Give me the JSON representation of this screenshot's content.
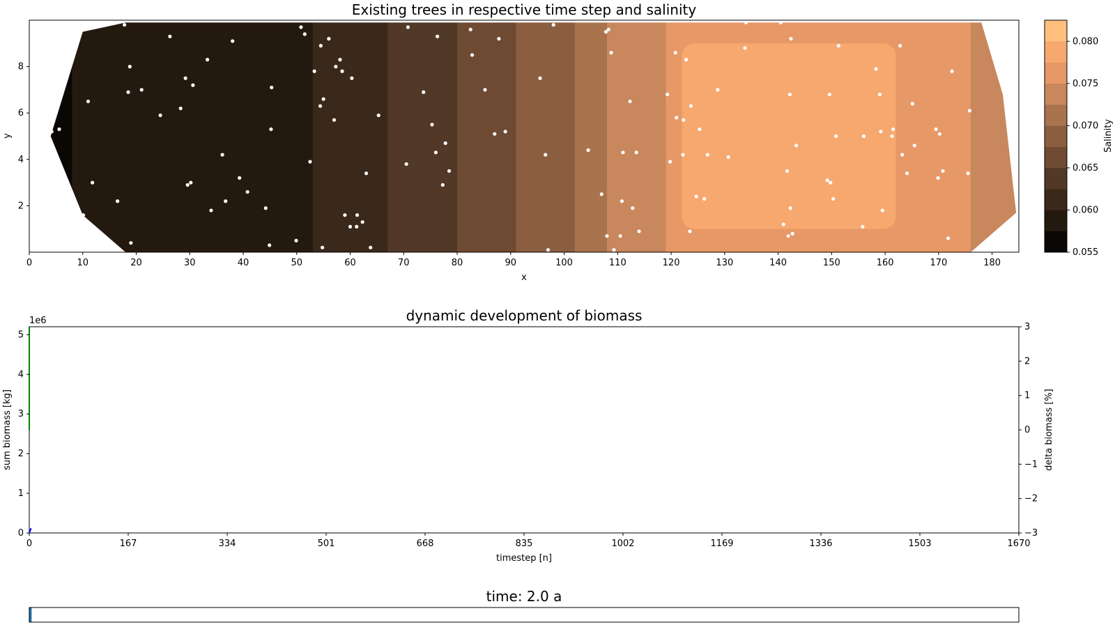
{
  "chart_data": [
    {
      "type": "heatmap",
      "title": "Existing trees in respective time step and salinity",
      "xlabel": "x",
      "ylabel": "y",
      "xlim": [
        0,
        185
      ],
      "ylim": [
        0,
        10
      ],
      "xticks": [
        0,
        10,
        20,
        30,
        40,
        50,
        60,
        70,
        80,
        90,
        100,
        110,
        120,
        130,
        140,
        150,
        160,
        170,
        180
      ],
      "yticks": [
        2,
        4,
        6,
        8
      ],
      "colorbar": {
        "label": "Salinity",
        "range": [
          0.055,
          0.0825
        ],
        "ticks": [
          0.055,
          0.06,
          0.065,
          0.07,
          0.075,
          0.08
        ],
        "tick_labels": [
          "0.055",
          "0.060",
          "0.065",
          "0.070",
          "0.075",
          "0.080"
        ],
        "levels": [
          0.055,
          0.0575,
          0.06,
          0.0625,
          0.065,
          0.0675,
          0.07,
          0.0725,
          0.075,
          0.0775,
          0.08,
          0.0825
        ],
        "colors": [
          "#0a0705",
          "#24190f",
          "#3a281a",
          "#523826",
          "#6e4a32",
          "#8b5e3f",
          "#a9734e",
          "#c8875d",
          "#e69866",
          "#f6a86f",
          "#ffc07d"
        ]
      },
      "salinity_bands": [
        {
          "x": [
            4,
            8
          ],
          "level": 0
        },
        {
          "x": [
            8,
            53
          ],
          "level": 1
        },
        {
          "x": [
            53,
            67
          ],
          "level": 2
        },
        {
          "x": [
            67,
            80
          ],
          "level": 3
        },
        {
          "x": [
            80,
            91
          ],
          "level": 4
        },
        {
          "x": [
            91,
            102
          ],
          "level": 5
        },
        {
          "x": [
            102,
            108
          ],
          "level": 6
        },
        {
          "x": [
            108,
            119
          ],
          "level": 7
        },
        {
          "x": [
            119,
            176
          ],
          "level": 8
        },
        {
          "x": [
            176,
            185
          ],
          "level": 7
        }
      ],
      "salinity_core": {
        "x": [
          122,
          162
        ],
        "y": [
          1,
          9
        ],
        "level": 9
      },
      "trees": [
        [
          4.2,
          5.2
        ],
        [
          5.6,
          5.3
        ],
        [
          10.1,
          1.6
        ],
        [
          11,
          6.5
        ],
        [
          11.8,
          3
        ],
        [
          16.5,
          2.2
        ],
        [
          17.8,
          9.8
        ],
        [
          18.5,
          6.9
        ],
        [
          18.8,
          8
        ],
        [
          19,
          0.4
        ],
        [
          21,
          7
        ],
        [
          24.5,
          5.9
        ],
        [
          26.3,
          9.3
        ],
        [
          28.3,
          6.2
        ],
        [
          29.2,
          7.5
        ],
        [
          29.6,
          2.9
        ],
        [
          30.2,
          3
        ],
        [
          30.6,
          7.2
        ],
        [
          33.3,
          8.3
        ],
        [
          34,
          1.8
        ],
        [
          36.1,
          4.2
        ],
        [
          36.7,
          2.2
        ],
        [
          38,
          9.1
        ],
        [
          39.3,
          3.2
        ],
        [
          40.8,
          2.6
        ],
        [
          44.2,
          1.9
        ],
        [
          44.9,
          0.3
        ],
        [
          45.2,
          5.3
        ],
        [
          45.3,
          7.1
        ],
        [
          49.9,
          0.5
        ],
        [
          50.8,
          9.7
        ],
        [
          51.5,
          9.4
        ],
        [
          52.5,
          3.9
        ],
        [
          53.3,
          7.8
        ],
        [
          54.4,
          6.3
        ],
        [
          54.5,
          8.9
        ],
        [
          54.8,
          0.2
        ],
        [
          55,
          6.6
        ],
        [
          56,
          9.2
        ],
        [
          57,
          5.7
        ],
        [
          57.3,
          8
        ],
        [
          58.1,
          8.3
        ],
        [
          58.5,
          7.8
        ],
        [
          59,
          1.6
        ],
        [
          60,
          1.1
        ],
        [
          60.3,
          7.5
        ],
        [
          61.2,
          1.1
        ],
        [
          61.3,
          1.6
        ],
        [
          62.3,
          1.3
        ],
        [
          63,
          3.4
        ],
        [
          63.8,
          0.2
        ],
        [
          65.3,
          5.9
        ],
        [
          70.5,
          3.8
        ],
        [
          70.8,
          9.7
        ],
        [
          73.7,
          6.9
        ],
        [
          75.3,
          5.5
        ],
        [
          76,
          4.3
        ],
        [
          76.3,
          9.3
        ],
        [
          77.3,
          2.9
        ],
        [
          77.8,
          4.7
        ],
        [
          78.5,
          3.5
        ],
        [
          82.5,
          9.6
        ],
        [
          82.8,
          8.5
        ],
        [
          85.2,
          7
        ],
        [
          87,
          5.1
        ],
        [
          87.8,
          9.2
        ],
        [
          89,
          5.2
        ],
        [
          95.5,
          7.5
        ],
        [
          96.5,
          4.2
        ],
        [
          97,
          0.1
        ],
        [
          98,
          9.8
        ],
        [
          104.5,
          4.4
        ],
        [
          107,
          2.5
        ],
        [
          107.8,
          9.5
        ],
        [
          108,
          0.7
        ],
        [
          108.3,
          9.6
        ],
        [
          108.8,
          8.6
        ],
        [
          109.3,
          0.1
        ],
        [
          110.5,
          0.7
        ],
        [
          110.8,
          2.2
        ],
        [
          111,
          4.3
        ],
        [
          112.3,
          6.5
        ],
        [
          112.8,
          1.9
        ],
        [
          113.5,
          4.3
        ],
        [
          114,
          0.9
        ],
        [
          119.3,
          6.8
        ],
        [
          119.8,
          3.9
        ],
        [
          120.8,
          8.6
        ],
        [
          121,
          5.8
        ],
        [
          122.2,
          4.2
        ],
        [
          122.3,
          5.7
        ],
        [
          122.8,
          8.3
        ],
        [
          123.5,
          0.9
        ],
        [
          123.7,
          6.3
        ],
        [
          124.7,
          2.4
        ],
        [
          125.3,
          5.3
        ],
        [
          126.2,
          2.3
        ],
        [
          126.8,
          4.2
        ],
        [
          128.7,
          7
        ],
        [
          130.7,
          4.1
        ],
        [
          133.8,
          8.8
        ],
        [
          134,
          9.9
        ],
        [
          140.5,
          9.9
        ],
        [
          141,
          1.2
        ],
        [
          141.7,
          3.5
        ],
        [
          141.9,
          0.7
        ],
        [
          142.2,
          6.8
        ],
        [
          142.3,
          1.9
        ],
        [
          142.4,
          9.2
        ],
        [
          142.7,
          0.8
        ],
        [
          143.4,
          4.6
        ],
        [
          149.2,
          3.1
        ],
        [
          149.6,
          6.8
        ],
        [
          149.8,
          3
        ],
        [
          150.3,
          2.3
        ],
        [
          150.8,
          5
        ],
        [
          151.3,
          8.9
        ],
        [
          155.8,
          1.1
        ],
        [
          156,
          5
        ],
        [
          158.3,
          7.9
        ],
        [
          159,
          6.8
        ],
        [
          159.2,
          5.2
        ],
        [
          159.5,
          1.8
        ],
        [
          161.3,
          5
        ],
        [
          161.5,
          5.3
        ],
        [
          162.8,
          8.9
        ],
        [
          163.2,
          4.2
        ],
        [
          164.1,
          3.4
        ],
        [
          165.1,
          6.4
        ],
        [
          165.5,
          4.6
        ],
        [
          169.5,
          5.3
        ],
        [
          169.9,
          3.2
        ],
        [
          170.2,
          5.1
        ],
        [
          170.8,
          3.5
        ],
        [
          171.8,
          0.6
        ],
        [
          172.5,
          7.8
        ],
        [
          175.5,
          3.4
        ],
        [
          175.8,
          6.1
        ]
      ]
    },
    {
      "type": "line",
      "title": "dynamic development of biomass",
      "xlabel": "timestep [n]",
      "ylabel": "sum biomass [kg]",
      "ylabel_right": "delta biomass [%]",
      "xlim": [
        0,
        1670
      ],
      "ylim": [
        0,
        5.2
      ],
      "ylim_right": [
        -3,
        3
      ],
      "xticks": [
        0,
        167,
        334,
        501,
        668,
        835,
        1002,
        1169,
        1336,
        1503,
        1670
      ],
      "yticks": [
        0,
        1,
        2,
        3,
        4,
        5
      ],
      "yticks_right": [
        -3,
        -2,
        -1,
        0,
        1,
        2,
        3
      ],
      "y_multiplier": "1e6",
      "left_color": "#0000ff",
      "right_color": "#008000",
      "series": [
        {
          "axis": "left",
          "x": [
            0,
            3
          ],
          "y": [
            0.0,
            0.12
          ]
        },
        {
          "axis": "right",
          "x": [
            0,
            0,
            1
          ],
          "y": [
            3.0,
            0.0,
            0.0
          ]
        }
      ]
    },
    {
      "type": "bar",
      "title": "time: 2.0 a",
      "progress": 0.0024,
      "bar_color": "#1f77b4"
    }
  ]
}
